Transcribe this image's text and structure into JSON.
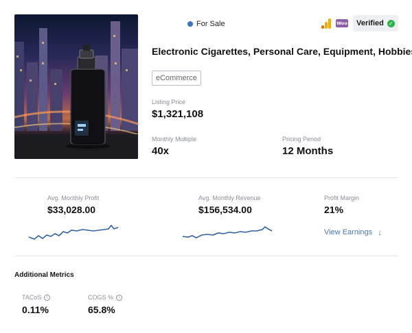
{
  "listing": {
    "status": "For Sale",
    "status_color": "#3b73c7",
    "verified_label": "Verified",
    "woo_label": "Woo",
    "title": "Electronic Cigarettes, Personal Care, Equipment, Hobbies",
    "category_tag": "eCommerce",
    "image_icon": "vape-device-city-image"
  },
  "pricing": {
    "listing_price_label": "Listing Price",
    "listing_price": "$1,321,108",
    "monthly_multiple_label": "Monthly Multiple",
    "monthly_multiple": "40x",
    "pricing_period_label": "Pricing Period",
    "pricing_period": "12 Months"
  },
  "metrics": {
    "profit_label": "Avg. Monthly Profit",
    "profit_value": "$33,028.00",
    "revenue_label": "Avg. Monthly Revenue",
    "revenue_value": "$156,534.00",
    "margin_label": "Profit Margin",
    "margin_value": "21%",
    "view_earnings": "View Earnings",
    "arrow_glyph": "↓",
    "sparkline_color": "#2f5fa6"
  },
  "additional": {
    "title": "Additional Metrics",
    "tacos_label": "TACoS",
    "tacos_value": "0.11%",
    "cogs_label": "COGS %",
    "cogs_value": "65.8%",
    "info_glyph": "i"
  }
}
